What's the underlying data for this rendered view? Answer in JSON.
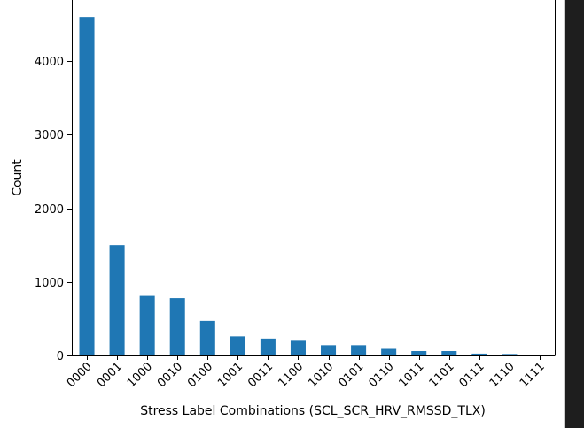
{
  "chart_data": {
    "type": "bar",
    "title": "",
    "xlabel": "Stress Label Combinations (SCL_SCR_HRV_RMSSD_TLX)",
    "ylabel": "Count",
    "categories": [
      "0000",
      "0001",
      "1000",
      "0010",
      "0100",
      "1001",
      "0011",
      "1100",
      "1010",
      "0101",
      "0110",
      "1011",
      "1101",
      "0111",
      "1110",
      "1111"
    ],
    "values": [
      4600,
      1500,
      810,
      780,
      470,
      260,
      230,
      200,
      140,
      140,
      90,
      60,
      60,
      25,
      20,
      10
    ],
    "ylim": [
      0,
      4830
    ],
    "yticks": [
      0,
      1000,
      2000,
      3000,
      4000
    ],
    "ytick_labels": [
      "0",
      "1000",
      "2000",
      "3000",
      "4000"
    ],
    "grid": false,
    "bar_color": "#1f77b4"
  },
  "colors": {
    "bar": "#1f77b4",
    "axis": "#000000",
    "window_edge": "#1e1e1e"
  }
}
